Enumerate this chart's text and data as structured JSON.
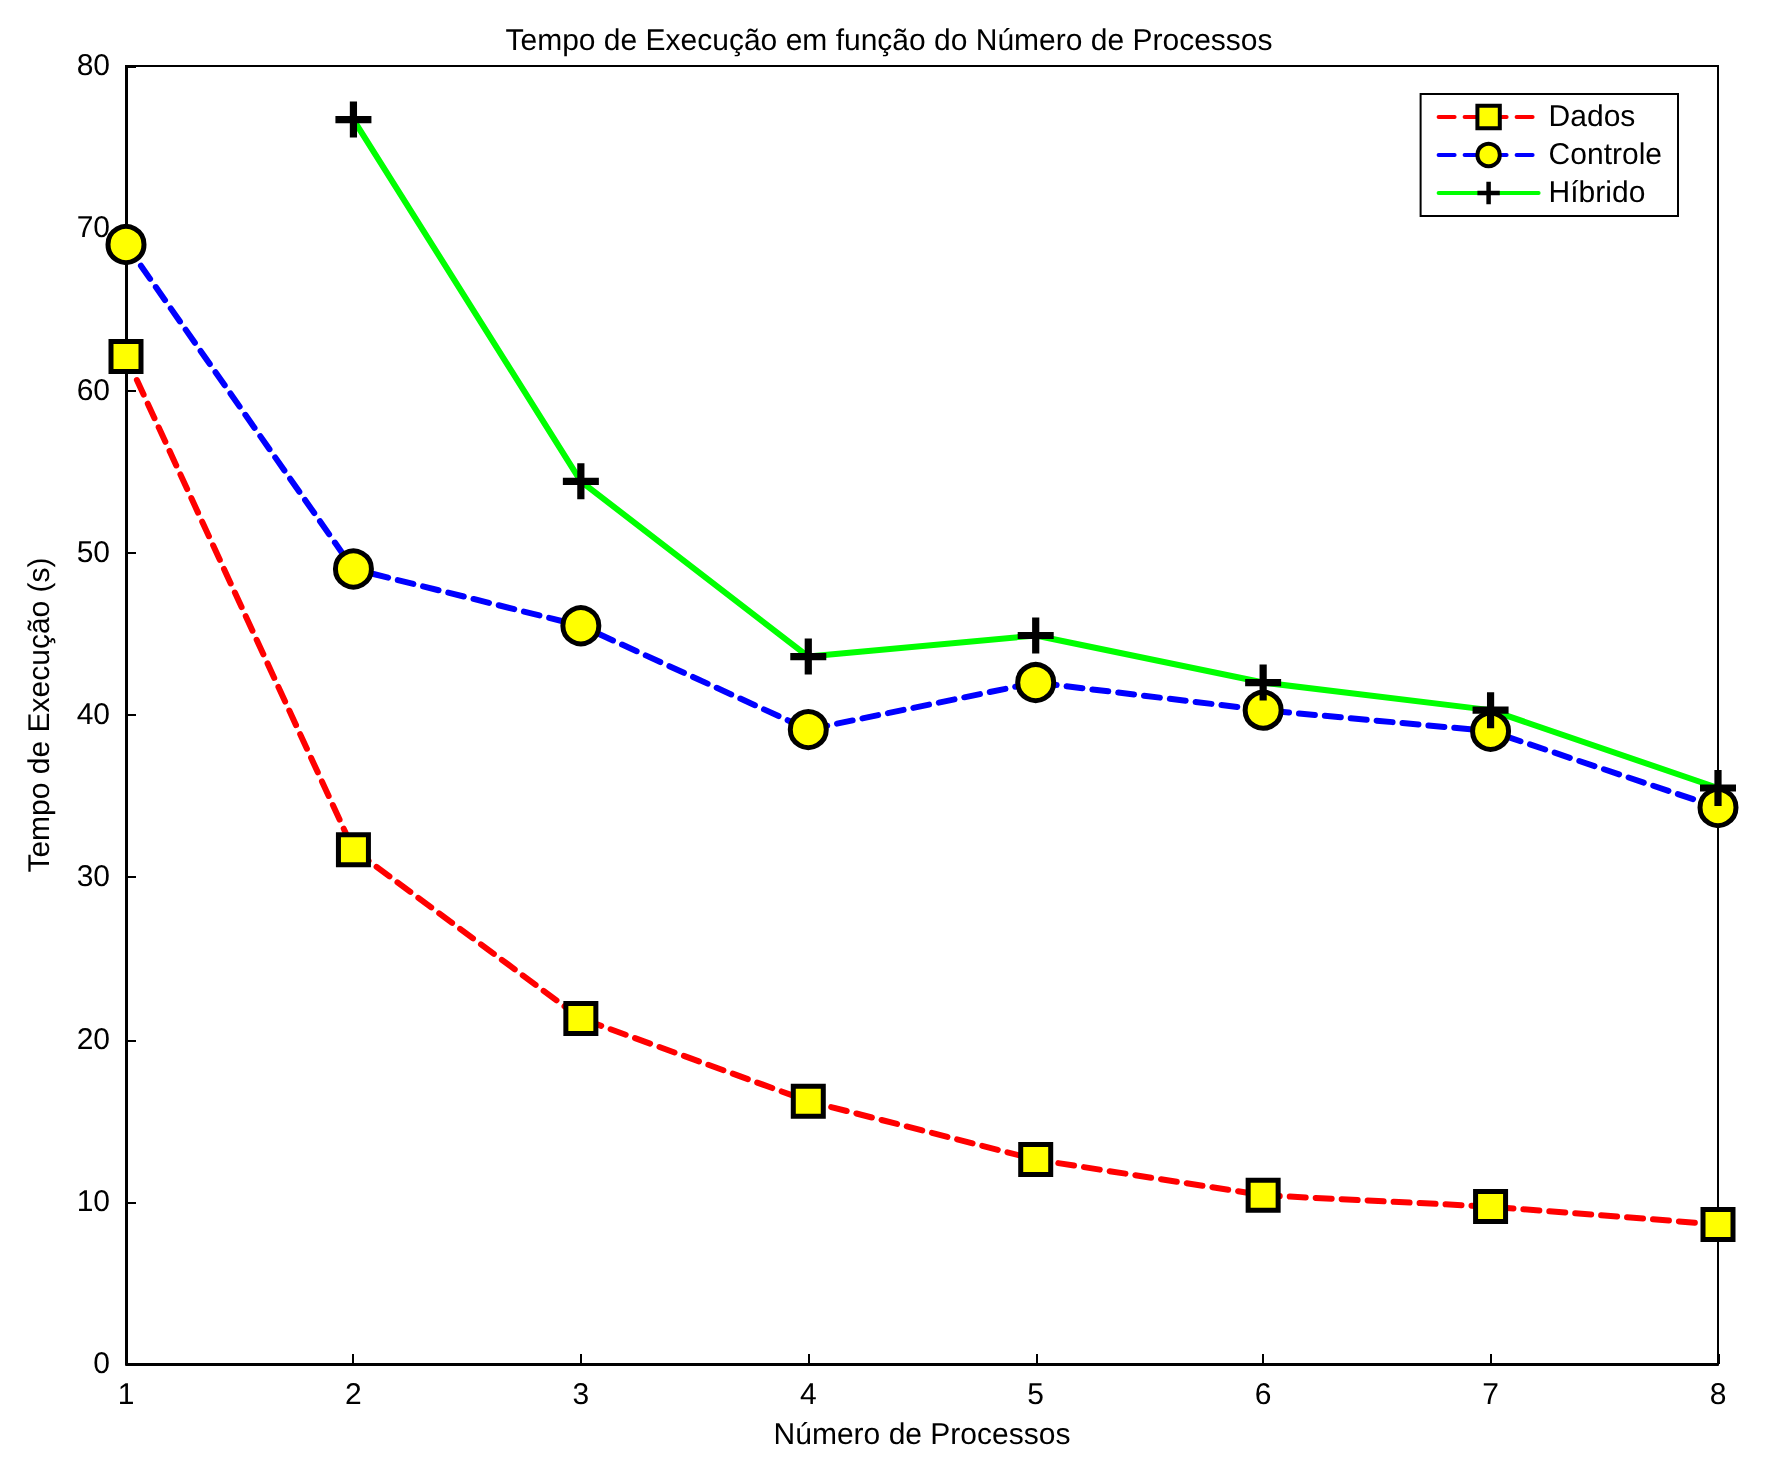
{
  "chart_data": {
    "type": "line",
    "title": "Tempo de Execução em função do Número de Processos",
    "xlabel": "Número de Processos",
    "ylabel": "Tempo de Execução (s)",
    "x": [
      1,
      2,
      3,
      4,
      5,
      6,
      7,
      8
    ],
    "series": [
      {
        "name": "Dados",
        "color": "#ff0000",
        "marker": "square",
        "line_style": "dashed",
        "values": [
          62.1,
          31.7,
          21.3,
          16.2,
          12.6,
          10.4,
          9.7,
          8.6
        ]
      },
      {
        "name": "Controle",
        "color": "#0000ff",
        "marker": "circle",
        "line_style": "dashed",
        "values": [
          69.0,
          49.0,
          45.5,
          39.1,
          42.0,
          40.3,
          39.0,
          34.3
        ]
      },
      {
        "name": "Híbrido",
        "color": "#00ff00",
        "marker": "cross",
        "line_style": "solid",
        "values": [
          null,
          76.7,
          54.4,
          43.6,
          44.9,
          42.0,
          40.3,
          35.5
        ]
      }
    ],
    "xlim": [
      1,
      8
    ],
    "xticks": [
      1,
      2,
      3,
      4,
      5,
      6,
      7,
      8
    ],
    "ylim": [
      0,
      80
    ],
    "yticks": [
      0,
      10,
      20,
      30,
      40,
      50,
      60,
      70,
      80
    ],
    "grid": false,
    "legend": "top right"
  }
}
